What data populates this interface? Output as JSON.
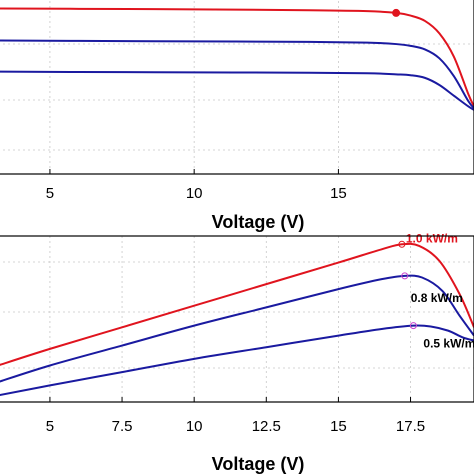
{
  "chart_data": [
    {
      "type": "line",
      "xlabel": "Voltage (V)",
      "ylabel": "",
      "xlim": [
        3.2,
        19.7
      ],
      "ylim": [
        0,
        1
      ],
      "xticks": [
        5,
        10,
        15
      ],
      "xtick_labels": [
        "5",
        "10",
        "15"
      ],
      "grid": true,
      "series": [
        {
          "color": "#e0141e",
          "x": [
            3.2,
            6,
            10,
            14,
            16,
            17,
            17.5,
            18,
            18.5,
            19,
            19.5,
            19.7
          ],
          "y": [
            0.93,
            0.928,
            0.925,
            0.92,
            0.915,
            0.905,
            0.89,
            0.86,
            0.79,
            0.66,
            0.45,
            0.38
          ]
        },
        {
          "color": "#1a1aa0",
          "x": [
            3.2,
            6,
            10,
            14,
            16,
            17,
            17.5,
            18,
            18.5,
            19,
            19.5,
            19.7
          ],
          "y": [
            0.75,
            0.748,
            0.745,
            0.742,
            0.738,
            0.73,
            0.72,
            0.7,
            0.65,
            0.55,
            0.41,
            0.37
          ]
        },
        {
          "color": "#1a1aa0",
          "x": [
            3.2,
            6,
            10,
            14,
            16,
            17,
            17.5,
            18,
            18.5,
            19,
            19.5,
            19.7
          ],
          "y": [
            0.575,
            0.573,
            0.571,
            0.569,
            0.566,
            0.56,
            0.555,
            0.54,
            0.5,
            0.44,
            0.38,
            0.36
          ]
        }
      ],
      "markers": [
        {
          "x": 17.0,
          "y": 0.905,
          "color": "#e0141e"
        }
      ]
    },
    {
      "type": "line",
      "xlabel": "Voltage (V)",
      "ylabel": "",
      "xlim": [
        3.2,
        19.7
      ],
      "ylim": [
        0,
        1
      ],
      "xticks": [
        5,
        7.5,
        10,
        12.5,
        15,
        17.5
      ],
      "xtick_labels": [
        "5",
        "7.5",
        "10",
        "12.5",
        "15",
        "17.5"
      ],
      "grid": true,
      "series": [
        {
          "name": "1.0 kW/m",
          "color": "#e0141e",
          "x": [
            3.2,
            5,
            7.5,
            10,
            12.5,
            15,
            16.5,
            17.2,
            17.8,
            18.5,
            19.2,
            19.7
          ],
          "y": [
            0.22,
            0.32,
            0.45,
            0.58,
            0.71,
            0.84,
            0.92,
            0.95,
            0.94,
            0.85,
            0.65,
            0.45
          ]
        },
        {
          "name": "0.8 kW/m",
          "color": "#1a1aa0",
          "x": [
            3.2,
            5,
            7.5,
            10,
            12.5,
            15,
            16.5,
            17.3,
            17.9,
            18.6,
            19.2,
            19.7
          ],
          "y": [
            0.12,
            0.22,
            0.34,
            0.46,
            0.57,
            0.68,
            0.74,
            0.76,
            0.75,
            0.67,
            0.52,
            0.4
          ]
        },
        {
          "name": "0.5 kW/m",
          "color": "#1a1aa0",
          "x": [
            3.2,
            5,
            7.5,
            10,
            12.5,
            15,
            16.5,
            17.6,
            18.2,
            18.8,
            19.3,
            19.7
          ],
          "y": [
            0.04,
            0.1,
            0.18,
            0.26,
            0.33,
            0.4,
            0.44,
            0.46,
            0.455,
            0.43,
            0.39,
            0.37
          ]
        }
      ],
      "markers": [
        {
          "x": 17.2,
          "y": 0.95,
          "color": "#e0141e"
        },
        {
          "x": 17.3,
          "y": 0.76,
          "color": "#cc44cc"
        },
        {
          "x": 17.6,
          "y": 0.46,
          "color": "#cc44cc"
        }
      ]
    }
  ]
}
